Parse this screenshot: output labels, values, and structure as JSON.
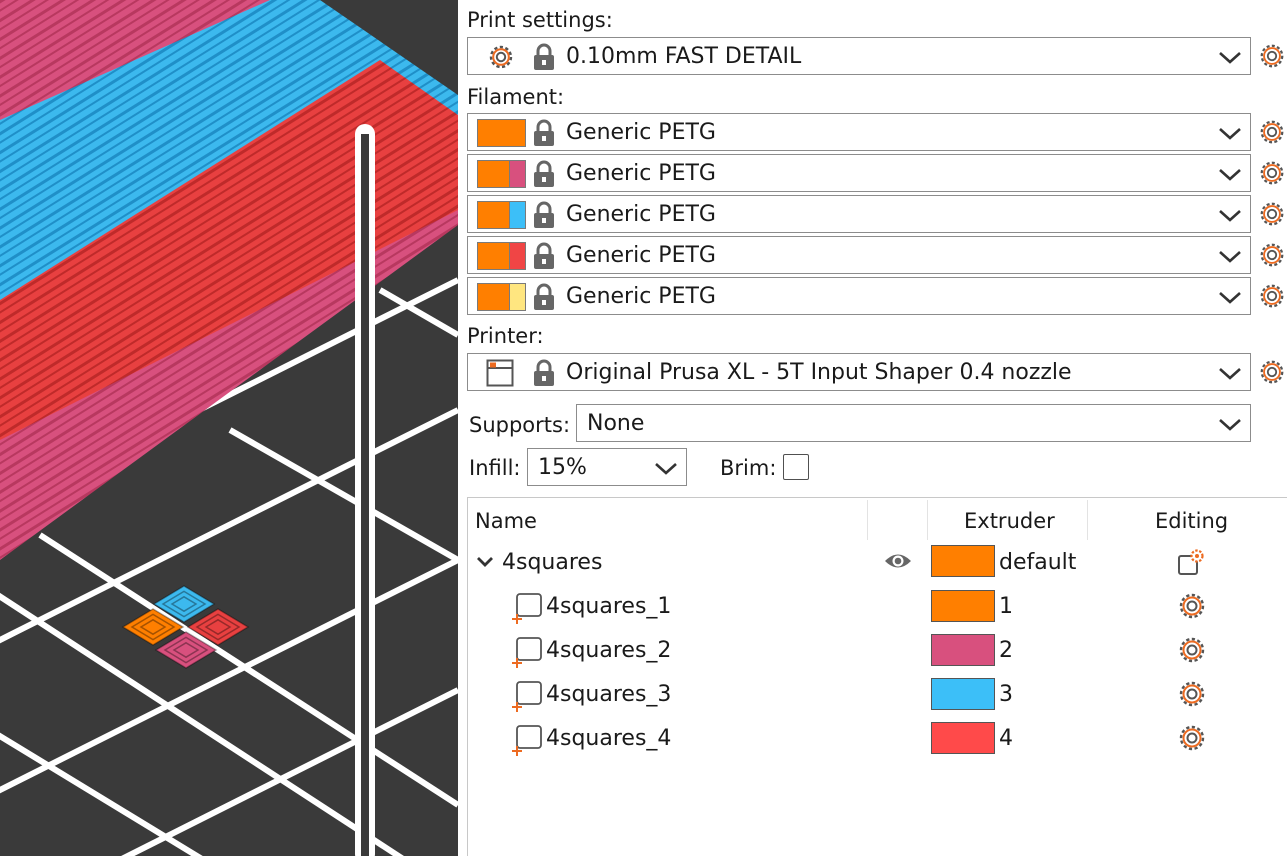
{
  "viewport": {
    "colors": {
      "bed": "#3a3a3a",
      "grid": "#ffffff",
      "magenta": "#d8507e",
      "blue": "#3cb9ee",
      "red": "#e84040",
      "orange": "#ff7f00"
    }
  },
  "print_settings": {
    "label": "Print settings:",
    "value": "0.10mm FAST DETAIL"
  },
  "filament": {
    "label": "Filament:",
    "items": [
      {
        "value": "Generic PETG",
        "color": "#ff7f00",
        "extruder_color": "#ff7f00"
      },
      {
        "value": "Generic PETG",
        "color": "#ff7f00",
        "extruder_color": "#d8507e"
      },
      {
        "value": "Generic PETG",
        "color": "#ff7f00",
        "extruder_color": "#3cbff8"
      },
      {
        "value": "Generic PETG",
        "color": "#ff7f00",
        "extruder_color": "#f04545"
      },
      {
        "value": "Generic PETG",
        "color": "#ff7f00",
        "extruder_color": "#ffe680"
      }
    ]
  },
  "printer": {
    "label": "Printer:",
    "value": "Original Prusa XL - 5T Input Shaper 0.4 nozzle"
  },
  "supports": {
    "label": "Supports:",
    "value": "None"
  },
  "infill": {
    "label": "Infill:",
    "value": "15%"
  },
  "brim": {
    "label": "Brim:",
    "checked": false
  },
  "object_list": {
    "columns": {
      "name": "Name",
      "extruder": "Extruder",
      "editing": "Editing"
    },
    "object": {
      "name": "4squares",
      "extruder": "default",
      "extruder_color": "#ff7f00",
      "visible": true
    },
    "parts": [
      {
        "name": "4squares_1",
        "extruder": "1",
        "color": "#ff7f00"
      },
      {
        "name": "4squares_2",
        "extruder": "2",
        "color": "#d8507e"
      },
      {
        "name": "4squares_3",
        "extruder": "3",
        "color": "#3cbff8"
      },
      {
        "name": "4squares_4",
        "extruder": "4",
        "color": "#ff4a4a"
      }
    ]
  },
  "icons": {
    "settings": "gear-icon",
    "lock": "lock-icon",
    "dropdown": "chevron-down-icon",
    "printer": "printer-icon",
    "visibility": "eye-icon",
    "expand": "chevron-down-icon",
    "part": "part-icon",
    "edit": "edit-settings-icon"
  },
  "accent": "#ed6b21"
}
